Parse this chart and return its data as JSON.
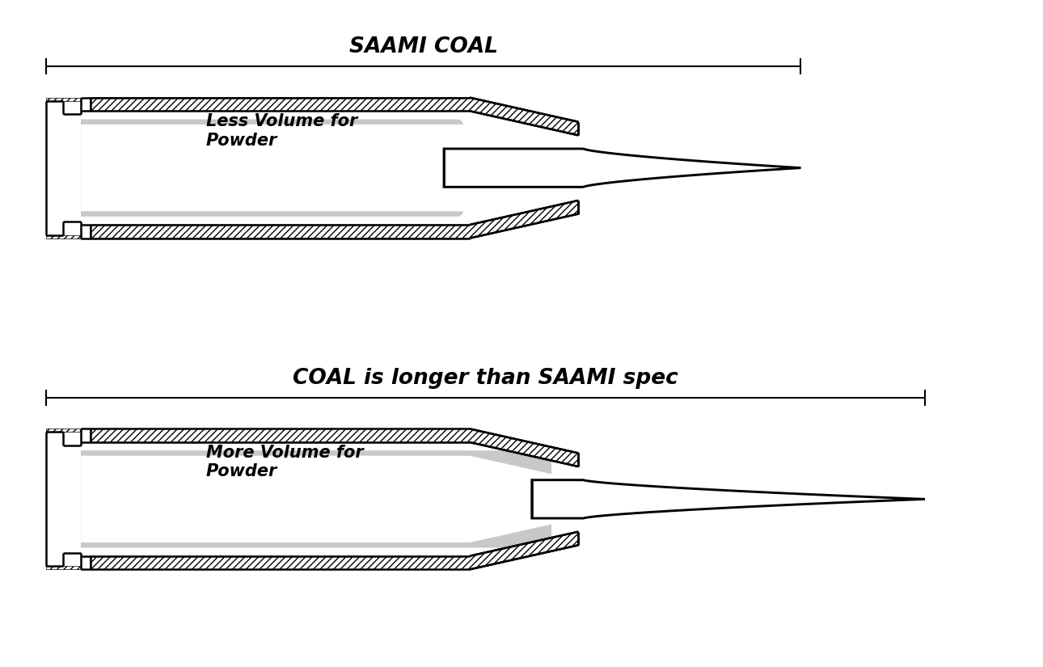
{
  "bg_color": "#ffffff",
  "line_color": "#000000",
  "gray_fill": "#c8c8c8",
  "title1": "SAAMI COAL",
  "title2": "COAL is longer than SAAMI spec",
  "label1": "Less Volume for\nPowder",
  "label2": "More Volume for\nPowder",
  "title_fontsize": 19,
  "label_fontsize": 15,
  "lw": 1.8
}
